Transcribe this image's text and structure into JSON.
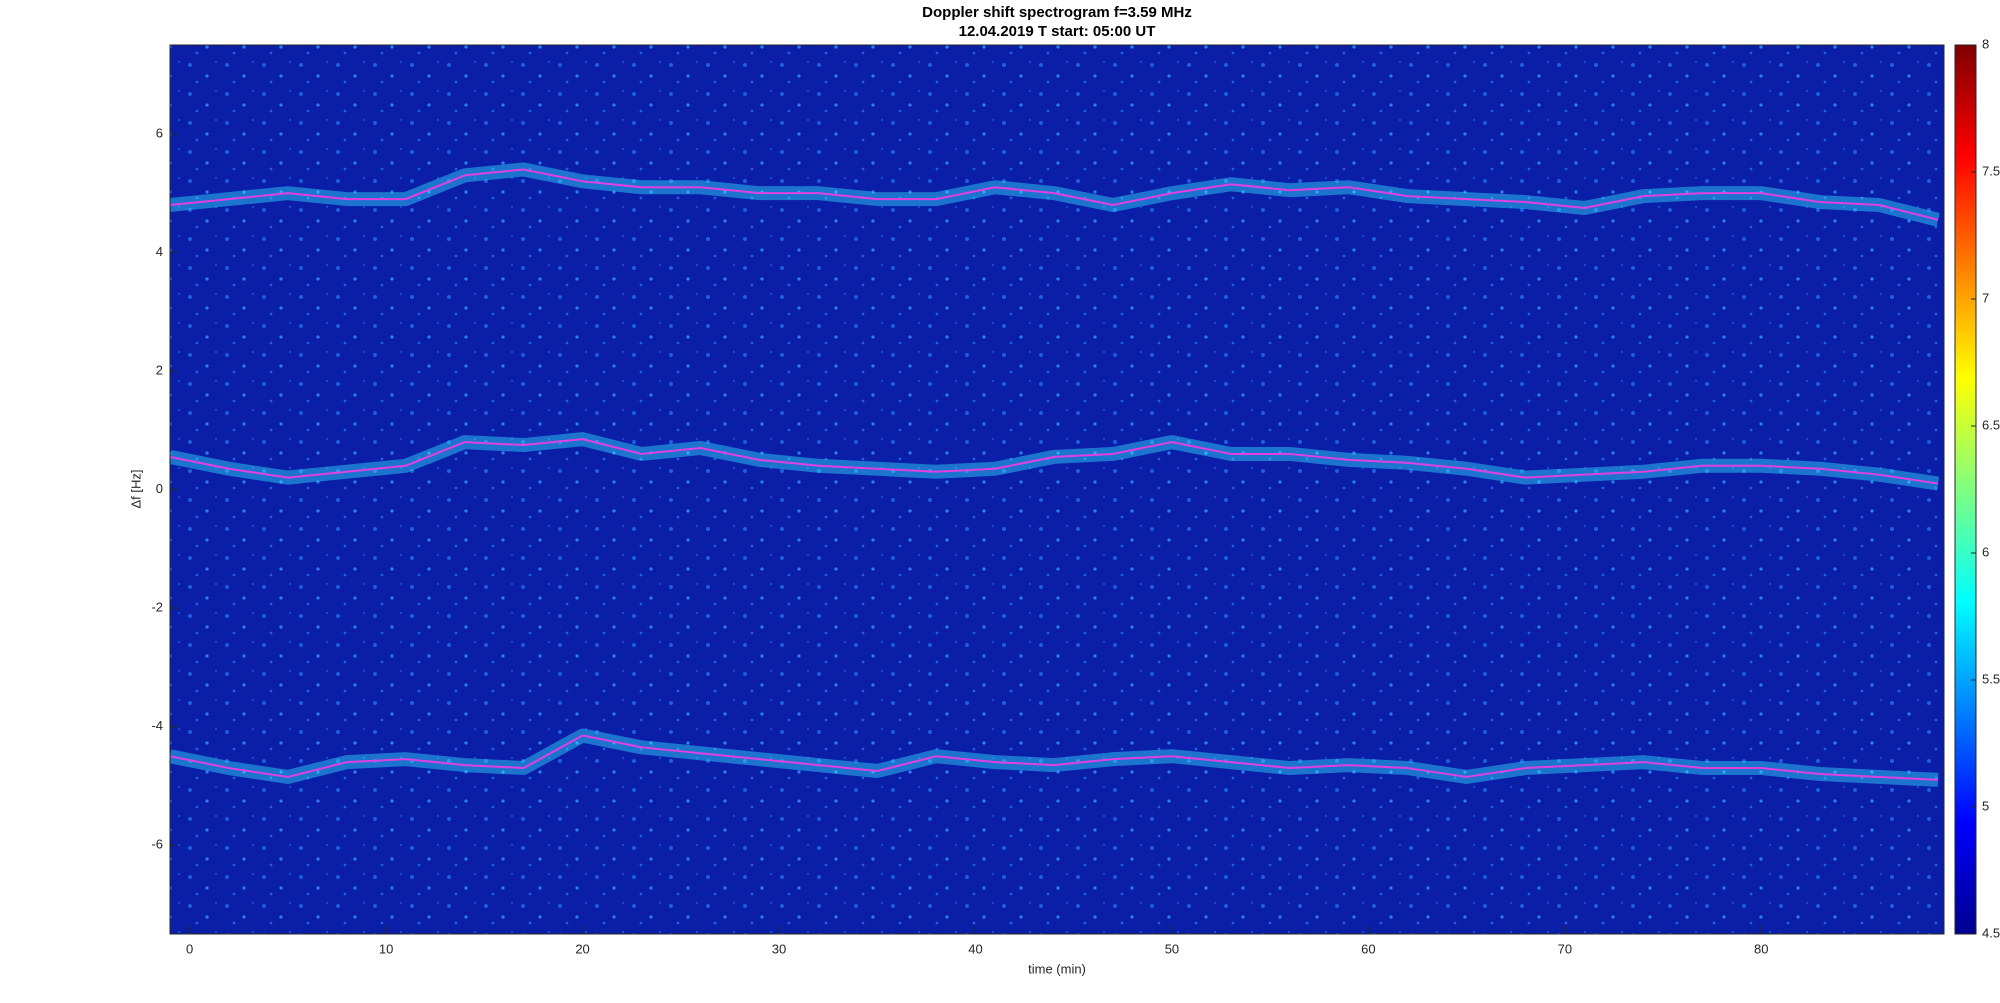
{
  "chart_data": {
    "type": "line",
    "title": "Doppler shift spectrogram f=3.59 MHz",
    "subtitle": "12.04.2019   T start: 05:00 UT",
    "x_label": "time (min)",
    "y_label": "Δf [Hz]",
    "x": [
      -1,
      2,
      5,
      8,
      11,
      14,
      17,
      20,
      23,
      26,
      29,
      32,
      35,
      38,
      41,
      44,
      47,
      50,
      53,
      56,
      59,
      62,
      65,
      68,
      71,
      74,
      77,
      80,
      83,
      86,
      89
    ],
    "series": [
      {
        "color": "#e040e0",
        "values": [
          4.8,
          4.9,
          5.0,
          4.9,
          4.9,
          5.3,
          5.4,
          5.2,
          5.1,
          5.1,
          5.0,
          5.0,
          4.9,
          4.9,
          5.1,
          5.0,
          4.8,
          5.0,
          5.15,
          5.05,
          5.1,
          4.95,
          4.9,
          4.85,
          4.75,
          4.95,
          5.0,
          5.0,
          4.85,
          4.8,
          4.55
        ]
      },
      {
        "color": "#e040e0",
        "values": [
          0.55,
          0.35,
          0.2,
          0.3,
          0.4,
          0.8,
          0.75,
          0.85,
          0.6,
          0.7,
          0.5,
          0.4,
          0.35,
          0.3,
          0.35,
          0.55,
          0.6,
          0.8,
          0.6,
          0.6,
          0.5,
          0.45,
          0.35,
          0.2,
          0.25,
          0.3,
          0.4,
          0.4,
          0.35,
          0.25,
          0.1
        ]
      },
      {
        "color": "#e040e0",
        "values": [
          -4.5,
          -4.7,
          -4.85,
          -4.6,
          -4.55,
          -4.65,
          -4.7,
          -4.15,
          -4.35,
          -4.45,
          -4.55,
          -4.65,
          -4.75,
          -4.5,
          -4.6,
          -4.65,
          -4.55,
          -4.5,
          -4.6,
          -4.7,
          -4.65,
          -4.7,
          -4.85,
          -4.7,
          -4.65,
          -4.6,
          -4.7,
          -4.7,
          -4.8,
          -4.85,
          -4.9
        ]
      }
    ],
    "xlim": [
      -1,
      89.3
    ],
    "xticks": [
      0,
      10,
      20,
      30,
      40,
      50,
      60,
      70,
      80
    ],
    "ylim": [
      -7.5,
      7.5
    ],
    "yticks": [
      -6,
      -4,
      -2,
      0,
      2,
      4,
      6
    ],
    "colorbar": {
      "lim": [
        4.5,
        8
      ],
      "ticks": [
        4.5,
        5,
        5.5,
        6,
        6.5,
        7,
        7.5,
        8
      ]
    }
  }
}
